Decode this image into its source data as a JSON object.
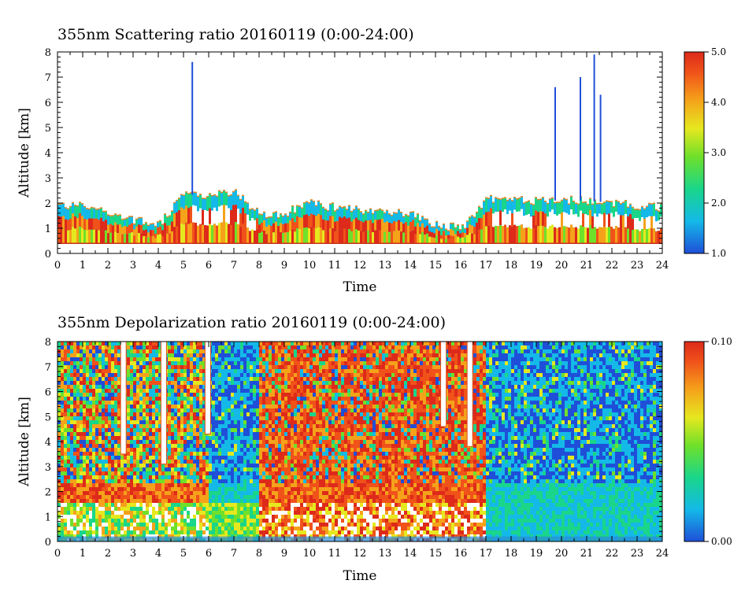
{
  "chart_data": [
    {
      "type": "heatmap",
      "title": "355nm Scattering ratio  20160119 (0:00-24:00)",
      "xlabel": "Time",
      "ylabel": "Altitude [km]",
      "xlim": [
        0,
        24
      ],
      "ylim": [
        0,
        8
      ],
      "x_ticks": [
        "0",
        "1",
        "2",
        "3",
        "4",
        "5",
        "6",
        "7",
        "8",
        "9",
        "10",
        "11",
        "12",
        "13",
        "14",
        "15",
        "16",
        "17",
        "18",
        "19",
        "20",
        "21",
        "22",
        "23",
        "24"
      ],
      "y_ticks": [
        "0",
        "1",
        "2",
        "3",
        "4",
        "5",
        "6",
        "7",
        "8"
      ],
      "colorbar": {
        "min": 1.0,
        "max": 5.0,
        "labels": [
          "1.0",
          "2.0",
          "3.0",
          "4.0",
          "5.0"
        ]
      },
      "colormap": [
        "#1f4fd8",
        "#14b9e8",
        "#19d68a",
        "#6fe02a",
        "#e6e81f",
        "#f5a21a",
        "#f0521a",
        "#dd2a1a"
      ],
      "layer_top_km": [
        {
          "t": 0,
          "h": 1.9
        },
        {
          "t": 1,
          "h": 1.9
        },
        {
          "t": 2,
          "h": 1.6
        },
        {
          "t": 3,
          "h": 1.3
        },
        {
          "t": 4,
          "h": 1.1
        },
        {
          "t": 5,
          "h": 2.4
        },
        {
          "t": 6,
          "h": 2.2
        },
        {
          "t": 7,
          "h": 2.5
        },
        {
          "t": 8,
          "h": 1.5
        },
        {
          "t": 9,
          "h": 1.6
        },
        {
          "t": 10,
          "h": 2.0
        },
        {
          "t": 11,
          "h": 1.8
        },
        {
          "t": 12,
          "h": 1.7
        },
        {
          "t": 13,
          "h": 1.6
        },
        {
          "t": 14,
          "h": 1.6
        },
        {
          "t": 15,
          "h": 1.1
        },
        {
          "t": 16,
          "h": 1.0
        },
        {
          "t": 17,
          "h": 2.2
        },
        {
          "t": 18,
          "h": 2.1
        },
        {
          "t": 19,
          "h": 2.1
        },
        {
          "t": 20,
          "h": 2.1
        },
        {
          "t": 21,
          "h": 2.1
        },
        {
          "t": 22,
          "h": 2.0
        },
        {
          "t": 23,
          "h": 1.9
        },
        {
          "t": 24,
          "h": 1.8
        }
      ],
      "surface_line_km": 0.4,
      "spikes": [
        {
          "t": 5.35,
          "top_km": 7.6
        },
        {
          "t": 19.75,
          "top_km": 6.6
        },
        {
          "t": 20.75,
          "top_km": 7.0
        },
        {
          "t": 21.3,
          "top_km": 7.9
        },
        {
          "t": 21.55,
          "top_km": 6.3
        }
      ]
    },
    {
      "type": "heatmap",
      "title": "355nm Depolarization ratio  20160119 (0:00-24:00)",
      "xlabel": "Time",
      "ylabel": "Altitude [km]",
      "xlim": [
        0,
        24
      ],
      "ylim": [
        0,
        8
      ],
      "x_ticks": [
        "0",
        "1",
        "2",
        "3",
        "4",
        "5",
        "6",
        "7",
        "8",
        "9",
        "10",
        "11",
        "12",
        "13",
        "14",
        "15",
        "16",
        "17",
        "18",
        "19",
        "20",
        "21",
        "22",
        "23",
        "24"
      ],
      "y_ticks": [
        "0",
        "1",
        "2",
        "3",
        "4",
        "5",
        "6",
        "7",
        "8"
      ],
      "colorbar": {
        "min": 0.0,
        "max": 0.1,
        "labels": [
          "0.00",
          "0.10"
        ]
      },
      "colormap": [
        "#1f4fd8",
        "#14b9e8",
        "#19d68a",
        "#6fe02a",
        "#e6e81f",
        "#f5a21a",
        "#f0521a",
        "#dd2a1a"
      ],
      "regimes": [
        {
          "t0": 0,
          "t1": 6,
          "upper": "mixed",
          "lower": "green-white"
        },
        {
          "t0": 6,
          "t1": 8,
          "upper": "blue",
          "lower": "green"
        },
        {
          "t0": 8,
          "t1": 17,
          "upper": "red",
          "lower": "orange-white"
        },
        {
          "t0": 17,
          "t1": 24,
          "upper": "blue",
          "lower": "cyan"
        }
      ],
      "white_gaps": [
        {
          "t": 2.6,
          "from_km": 3.5
        },
        {
          "t": 4.2,
          "from_km": 3.1
        },
        {
          "t": 5.95,
          "from_km": 4.3
        },
        {
          "t": 15.3,
          "from_km": 4.6
        },
        {
          "t": 16.35,
          "from_km": 3.8
        }
      ]
    }
  ]
}
